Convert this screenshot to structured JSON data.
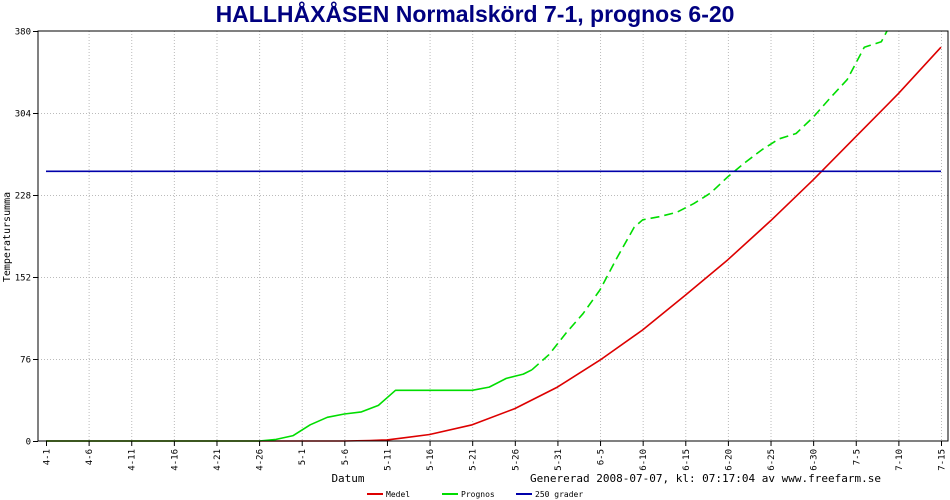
{
  "chart_data": {
    "type": "line",
    "title": "HALLHÅXÅSEN Normalskörd 7-1, prognos 6-20",
    "xlabel": "Datum",
    "ylabel": "Temperatursumma",
    "footer": "Genererad 2008-07-07, kl: 07:17:04 av www.freefarm.se",
    "ylim": [
      0,
      380
    ],
    "yticks": [
      "0",
      "76",
      "152",
      "228",
      "304",
      "380"
    ],
    "xlim": [
      0,
      105
    ],
    "xticks": [
      {
        "label": "4-1",
        "day": 0
      },
      {
        "label": "4-6",
        "day": 5
      },
      {
        "label": "4-11",
        "day": 10
      },
      {
        "label": "4-16",
        "day": 15
      },
      {
        "label": "4-21",
        "day": 20
      },
      {
        "label": "4-26",
        "day": 25
      },
      {
        "label": "5-1",
        "day": 30
      },
      {
        "label": "5-6",
        "day": 35
      },
      {
        "label": "5-11",
        "day": 40
      },
      {
        "label": "5-16",
        "day": 45
      },
      {
        "label": "5-21",
        "day": 50
      },
      {
        "label": "5-26",
        "day": 55
      },
      {
        "label": "5-31",
        "day": 60
      },
      {
        "label": "6-5",
        "day": 65
      },
      {
        "label": "6-10",
        "day": 70
      },
      {
        "label": "6-15",
        "day": 75
      },
      {
        "label": "6-20",
        "day": 80
      },
      {
        "label": "6-25",
        "day": 85
      },
      {
        "label": "6-30",
        "day": 90
      },
      {
        "label": "7-5",
        "day": 95
      },
      {
        "label": "7-10",
        "day": 100
      },
      {
        "label": "7-15",
        "day": 105
      }
    ],
    "series": [
      {
        "name": "Medel",
        "color": "#dd0000",
        "dash": false,
        "x": [
          0,
          25,
          30,
          35,
          38,
          40,
          42,
          45,
          50,
          55,
          60,
          65,
          70,
          75,
          80,
          85,
          90,
          95,
          100,
          105
        ],
        "y": [
          0,
          0,
          0,
          0,
          0.5,
          1,
          3,
          6,
          15,
          30,
          50,
          75,
          103,
          135,
          168,
          204,
          242,
          282,
          322,
          365
        ]
      },
      {
        "name": "Prognos",
        "color": "#00dd00",
        "dash": false,
        "x": [
          0,
          25,
          27,
          29,
          31,
          33,
          35,
          37,
          39,
          40,
          41,
          45,
          50,
          52,
          54,
          56,
          57
        ],
        "y": [
          0,
          0,
          1.5,
          5,
          15,
          22,
          25,
          27,
          33,
          40,
          47,
          47,
          47,
          50,
          58,
          62,
          66
        ]
      },
      {
        "name": "Prognos",
        "color": "#00dd00",
        "dash": true,
        "x": [
          57,
          59,
          61,
          63,
          65,
          67,
          69,
          70,
          72,
          74,
          76,
          78,
          80,
          82,
          84,
          86,
          88,
          90,
          92,
          94,
          96,
          98,
          99,
          100
        ],
        "y": [
          66,
          80,
          100,
          118,
          140,
          170,
          198,
          205,
          208,
          212,
          220,
          230,
          245,
          258,
          270,
          280,
          285,
          300,
          318,
          335,
          365,
          370,
          385,
          390
        ]
      },
      {
        "name": "250 grader",
        "color": "#0000aa",
        "dash": false,
        "x": [
          0,
          105
        ],
        "y": [
          250,
          250
        ]
      }
    ],
    "legend": [
      {
        "name": "Medel",
        "color": "#dd0000"
      },
      {
        "name": "Prognos",
        "color": "#00dd00"
      },
      {
        "name": "250 grader",
        "color": "#0000aa"
      }
    ],
    "legend_position": "bottom"
  }
}
